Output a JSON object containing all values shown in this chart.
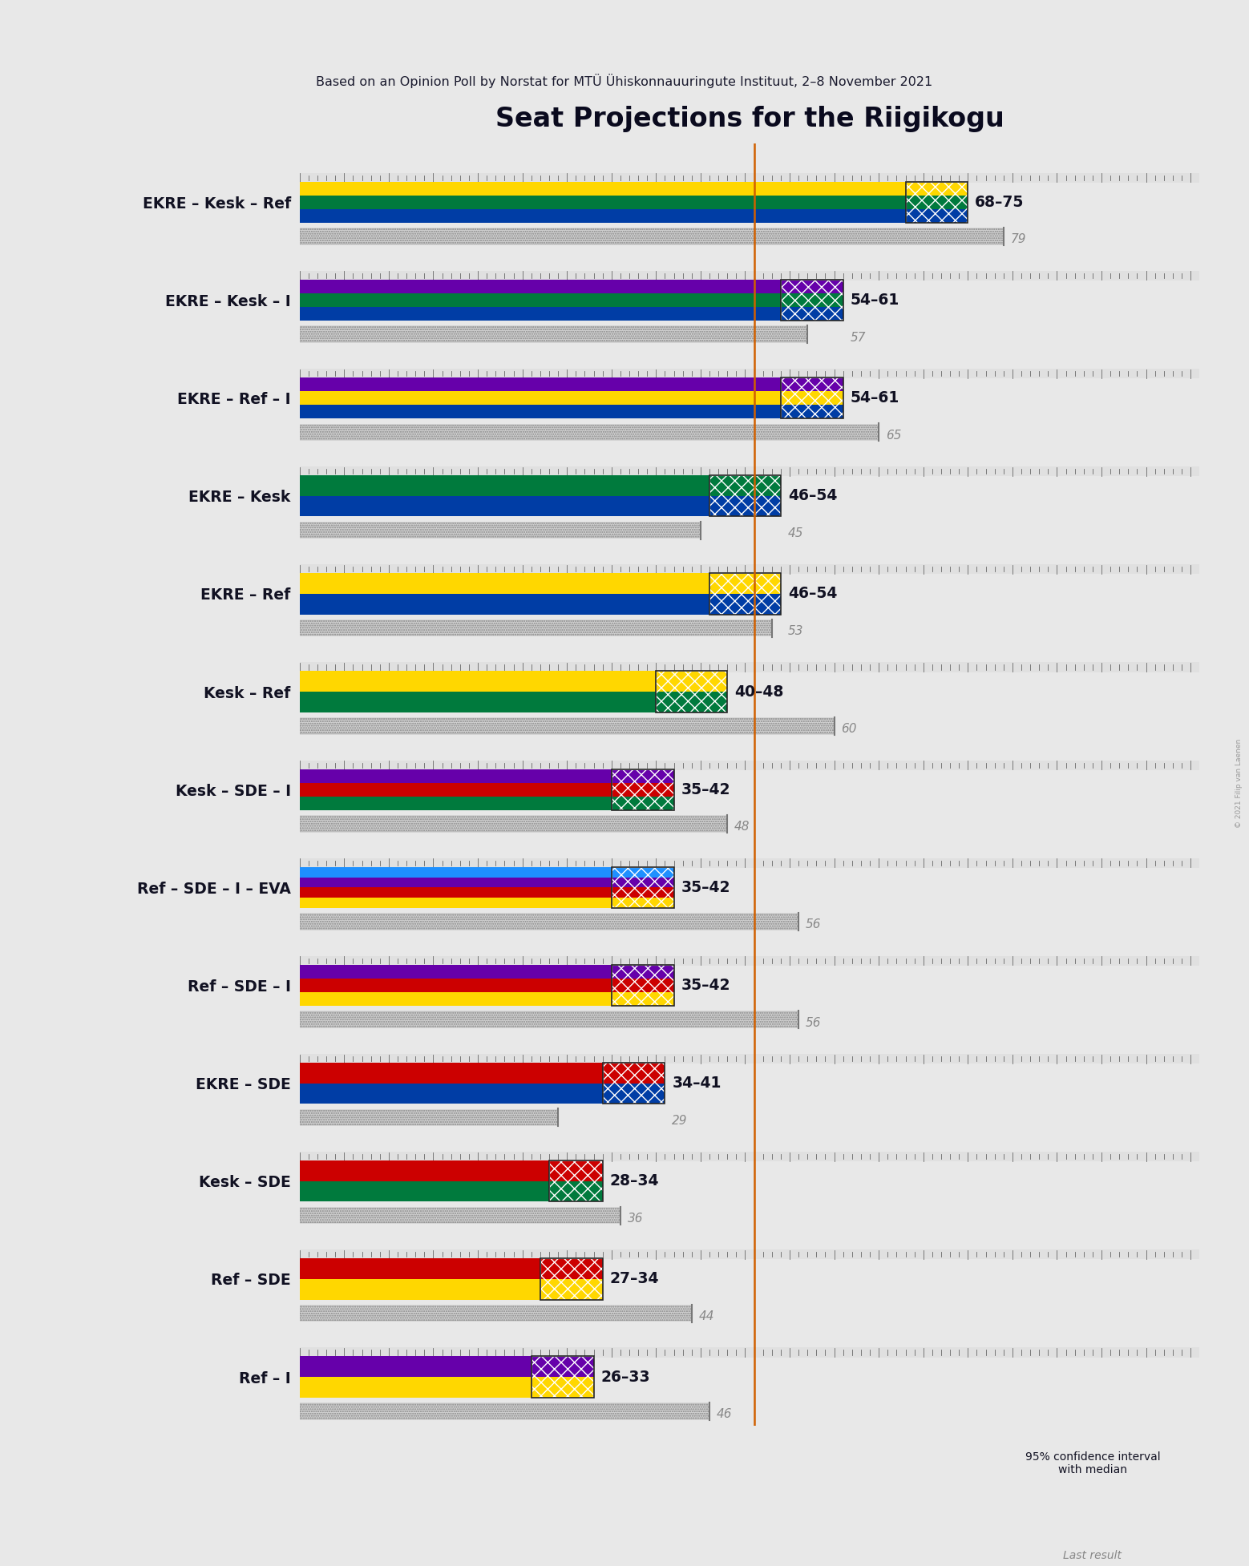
{
  "title": "Seat Projections for the Riigikogu",
  "subtitle": "Based on an Opinion Poll by Norstat for MTÜ Ühiskonnauuringute Instituut, 2–8 November 2021",
  "copyright": "© 2021 Filip van Laenen",
  "background_color": "#e8e8e8",
  "majority_line": 51,
  "x_max": 101,
  "coalitions": [
    {
      "name": "EKRE – Kesk – Ref",
      "ci_low": 68,
      "ci_high": 75,
      "last_result": 79,
      "parties": [
        "EKRE",
        "Kesk",
        "Ref"
      ],
      "underline": false
    },
    {
      "name": "EKRE – Kesk – I",
      "ci_low": 54,
      "ci_high": 61,
      "last_result": 57,
      "parties": [
        "EKRE",
        "Kesk",
        "I"
      ],
      "underline": true
    },
    {
      "name": "EKRE – Ref – I",
      "ci_low": 54,
      "ci_high": 61,
      "last_result": 65,
      "parties": [
        "EKRE",
        "Ref",
        "I"
      ],
      "underline": false
    },
    {
      "name": "EKRE – Kesk",
      "ci_low": 46,
      "ci_high": 54,
      "last_result": 45,
      "parties": [
        "EKRE",
        "Kesk"
      ],
      "underline": false
    },
    {
      "name": "EKRE – Ref",
      "ci_low": 46,
      "ci_high": 54,
      "last_result": 53,
      "parties": [
        "EKRE",
        "Ref"
      ],
      "underline": false
    },
    {
      "name": "Kesk – Ref",
      "ci_low": 40,
      "ci_high": 48,
      "last_result": 60,
      "parties": [
        "Kesk",
        "Ref"
      ],
      "underline": false
    },
    {
      "name": "Kesk – SDE – I",
      "ci_low": 35,
      "ci_high": 42,
      "last_result": 48,
      "parties": [
        "Kesk",
        "SDE",
        "I"
      ],
      "underline": false
    },
    {
      "name": "Ref – SDE – I – EVA",
      "ci_low": 35,
      "ci_high": 42,
      "last_result": 56,
      "parties": [
        "Ref",
        "SDE",
        "I",
        "EVA"
      ],
      "underline": false
    },
    {
      "name": "Ref – SDE – I",
      "ci_low": 35,
      "ci_high": 42,
      "last_result": 56,
      "parties": [
        "Ref",
        "SDE",
        "I"
      ],
      "underline": false
    },
    {
      "name": "EKRE – SDE",
      "ci_low": 34,
      "ci_high": 41,
      "last_result": 29,
      "parties": [
        "EKRE",
        "SDE"
      ],
      "underline": false
    },
    {
      "name": "Kesk – SDE",
      "ci_low": 28,
      "ci_high": 34,
      "last_result": 36,
      "parties": [
        "Kesk",
        "SDE"
      ],
      "underline": false
    },
    {
      "name": "Ref – SDE",
      "ci_low": 27,
      "ci_high": 34,
      "last_result": 44,
      "parties": [
        "Ref",
        "SDE"
      ],
      "underline": false
    },
    {
      "name": "Ref – I",
      "ci_low": 26,
      "ci_high": 33,
      "last_result": 46,
      "parties": [
        "Ref",
        "I"
      ],
      "underline": false
    }
  ],
  "party_colors": {
    "EKRE": "#003DA5",
    "Kesk": "#007A3D",
    "Ref": "#FFD700",
    "SDE": "#CC0000",
    "I": "#6600AA",
    "EVA": "#1E90FF"
  }
}
